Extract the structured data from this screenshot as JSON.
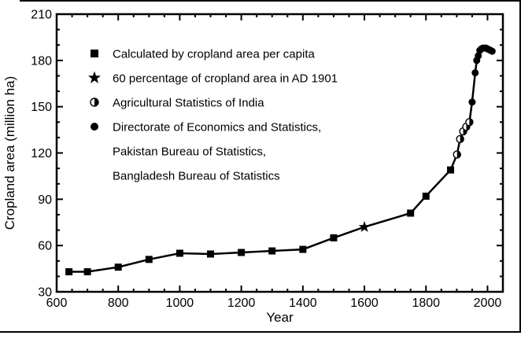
{
  "figure": {
    "background": "#ffffff",
    "frame_color": "#000000"
  },
  "chart_data": {
    "type": "line",
    "title": "",
    "xlabel": "Year",
    "ylabel": "Cropland area (million ha)",
    "xlim": [
      600,
      2050
    ],
    "ylim": [
      30,
      210
    ],
    "x_major_ticks": [
      600,
      800,
      1000,
      1200,
      1400,
      1600,
      1800,
      2000
    ],
    "x_minor_step": 50,
    "y_major_ticks": [
      30,
      60,
      90,
      120,
      150,
      180,
      210
    ],
    "y_minor_step": 10,
    "grid": false,
    "line_color": "#000000",
    "marker_color": "#000000",
    "legend_position": "upper-left-inside",
    "series": [
      {
        "name": "Calculated by cropland area per capita",
        "marker": "square",
        "points": [
          [
            640,
            43
          ],
          [
            700,
            43
          ],
          [
            800,
            46
          ],
          [
            900,
            51
          ],
          [
            1000,
            55
          ],
          [
            1100,
            54.5
          ],
          [
            1200,
            55.5
          ],
          [
            1300,
            56.5
          ],
          [
            1400,
            57.5
          ],
          [
            1500,
            65
          ],
          [
            1750,
            81
          ],
          [
            1800,
            92
          ],
          [
            1880,
            109
          ]
        ]
      },
      {
        "name": "60 percentage of cropland area in AD 1901",
        "marker": "star",
        "points": [
          [
            1600,
            72
          ]
        ]
      },
      {
        "name": "Agricultural Statistics of India",
        "marker": "half-circle",
        "points": [
          [
            1901,
            119
          ],
          [
            1911,
            129
          ],
          [
            1921,
            134
          ],
          [
            1931,
            137
          ],
          [
            1941,
            140
          ]
        ]
      },
      {
        "name": "Directorate of Economics and Statistics, Pakistan Bureau of Statistics, Bangladesh Bureau of Statistics",
        "marker": "circle",
        "points": [
          [
            1950,
            153
          ],
          [
            1960,
            172
          ],
          [
            1965,
            180
          ],
          [
            1970,
            183
          ],
          [
            1975,
            186.5
          ],
          [
            1980,
            187.5
          ],
          [
            1985,
            188
          ],
          [
            1990,
            188
          ],
          [
            1995,
            188
          ],
          [
            2000,
            187.5
          ],
          [
            2005,
            187
          ],
          [
            2010,
            186.5
          ],
          [
            2015,
            186
          ]
        ]
      }
    ],
    "legend": {
      "entries": [
        {
          "marker": "square",
          "lines": [
            "Calculated by cropland area per capita"
          ]
        },
        {
          "marker": "star",
          "lines": [
            "60 percentage of cropland area in AD 1901"
          ]
        },
        {
          "marker": "half-circle",
          "lines": [
            "Agricultural Statistics of India"
          ]
        },
        {
          "marker": "circle",
          "lines": [
            "Directorate of Economics and Statistics,",
            "Pakistan Bureau of Statistics,",
            "Bangladesh Bureau of Statistics"
          ]
        }
      ]
    }
  }
}
